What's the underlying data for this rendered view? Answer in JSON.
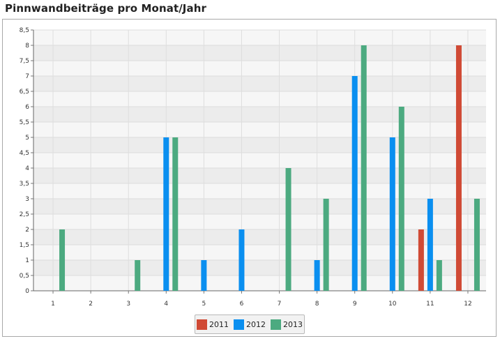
{
  "title": "Pinnwandbeiträge pro Monat/Jahr",
  "chart_data": {
    "type": "bar",
    "title": "",
    "xlabel": "",
    "ylabel": "",
    "categories": [
      "1",
      "2",
      "3",
      "4",
      "5",
      "6",
      "7",
      "8",
      "9",
      "10",
      "11",
      "12"
    ],
    "ylim": [
      0,
      8.5
    ],
    "yticks": [
      "0",
      "0,5",
      "1",
      "1,5",
      "2",
      "2,5",
      "3",
      "3,5",
      "4",
      "4,5",
      "5",
      "5,5",
      "6",
      "6,5",
      "7",
      "7,5",
      "8",
      "8,5"
    ],
    "grid": true,
    "legend_position": "bottom-center",
    "series": [
      {
        "name": "2011",
        "color": "#d04a35",
        "values": [
          0,
          0,
          0,
          0,
          0,
          0,
          0,
          0,
          0,
          0,
          2,
          8
        ]
      },
      {
        "name": "2012",
        "color": "#0a8ff0",
        "values": [
          0,
          0,
          0,
          5,
          1,
          2,
          0,
          1,
          7,
          5,
          3,
          0
        ]
      },
      {
        "name": "2013",
        "color": "#4caa80",
        "values": [
          2,
          0,
          1,
          5,
          0,
          0,
          4,
          3,
          8,
          6,
          1,
          3
        ]
      }
    ]
  }
}
